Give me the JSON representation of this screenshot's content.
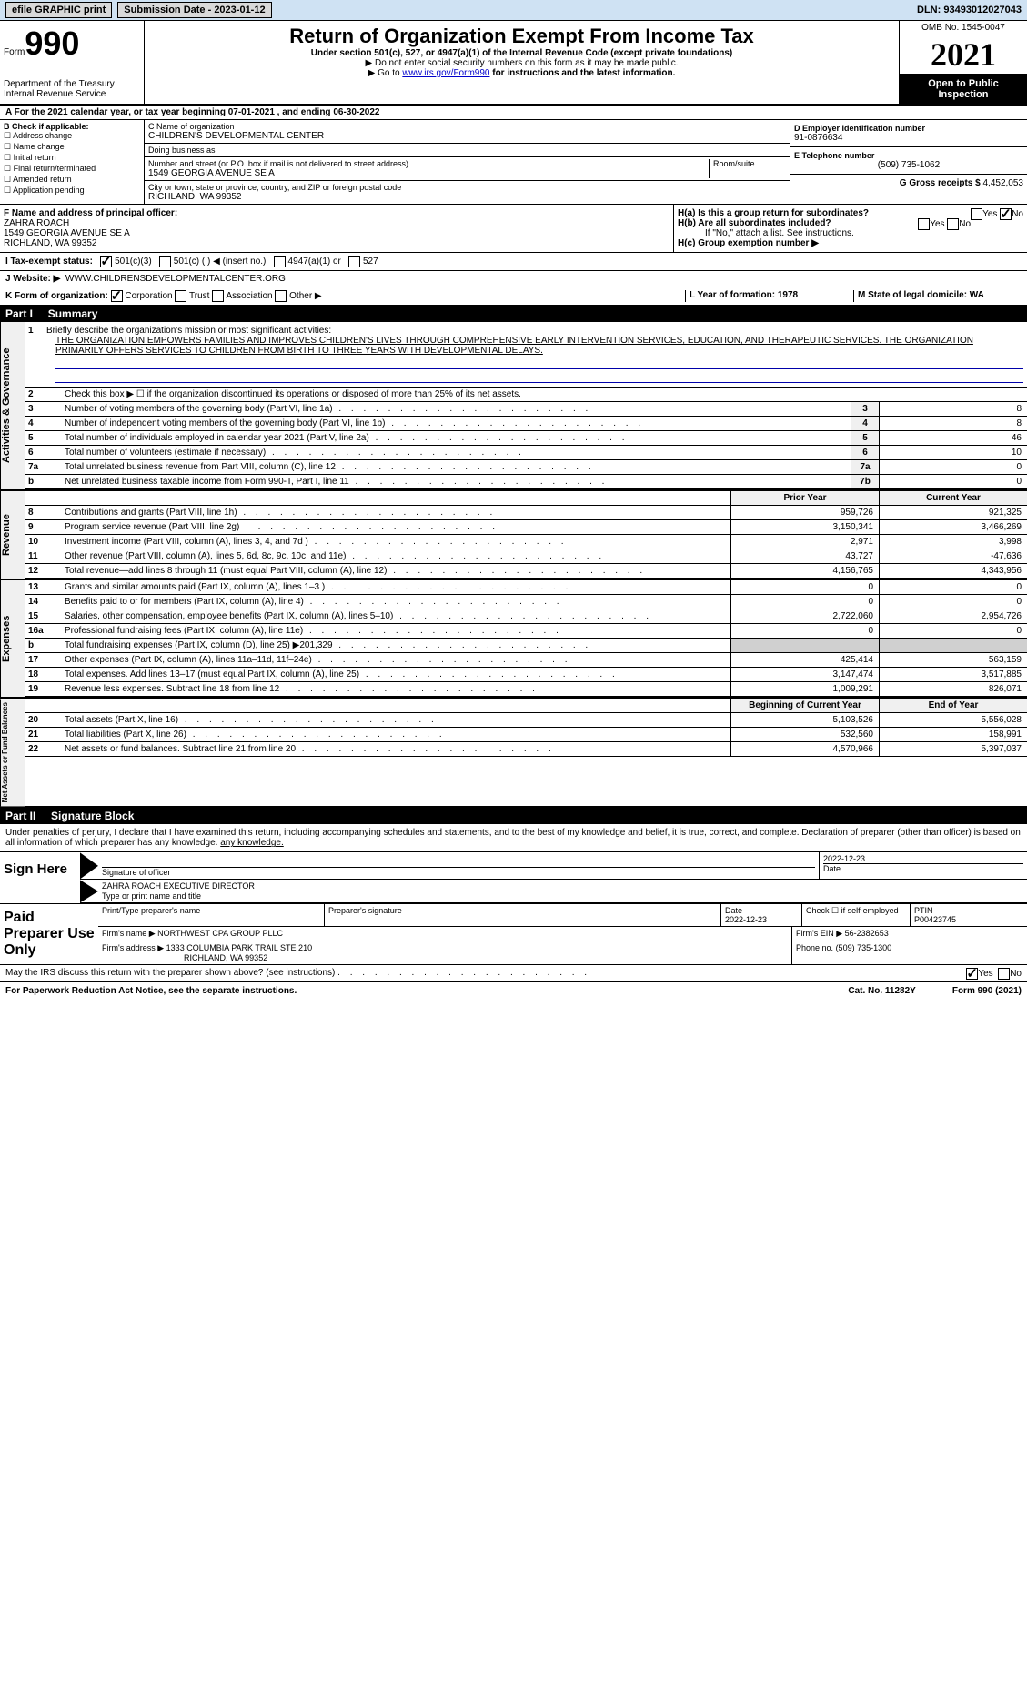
{
  "topbar": {
    "efile_label": "efile GRAPHIC print",
    "submission_label": "Submission Date - 2023-01-12",
    "dln_label": "DLN: 93493012027043"
  },
  "header": {
    "form_word": "Form",
    "form_number": "990",
    "main_title": "Return of Organization Exempt From Income Tax",
    "subtitle": "Under section 501(c), 527, or 4947(a)(1) of the Internal Revenue Code (except private foundations)",
    "ssn_note": "▶ Do not enter social security numbers on this form as it may be made public.",
    "goto": "▶ Go to ",
    "goto_link": "www.irs.gov/Form990",
    "goto_suffix": " for instructions and the latest information.",
    "dept": "Department of the Treasury",
    "irs": "Internal Revenue Service",
    "omb": "OMB No. 1545-0047",
    "year": "2021",
    "open_public": "Open to Public Inspection"
  },
  "period": {
    "line": "A For the 2021 calendar year, or tax year beginning 07-01-2021    , and ending 06-30-2022"
  },
  "colB": {
    "label": "B Check if applicable:",
    "items": [
      "Address change",
      "Name change",
      "Initial return",
      "Final return/terminated",
      "Amended return",
      "Application pending"
    ]
  },
  "colC": {
    "name_label": "C Name of organization",
    "name": "CHILDREN'S DEVELOPMENTAL CENTER",
    "dba_label": "Doing business as",
    "dba": "",
    "street_label": "Number and street (or P.O. box if mail is not delivered to street address)",
    "room_label": "Room/suite",
    "street": "1549 GEORGIA AVENUE SE A",
    "city_label": "City or town, state or province, country, and ZIP or foreign postal code",
    "city": "RICHLAND, WA  99352"
  },
  "colDEG": {
    "d_label": "D Employer identification number",
    "d_val": "91-0876634",
    "e_label": "E Telephone number",
    "e_val": "(509) 735-1062",
    "g_label": "G Gross receipts $ ",
    "g_val": "4,452,053"
  },
  "rowF": {
    "label": "F  Name and address of principal officer:",
    "name": "ZAHRA ROACH",
    "street": "1549 GEORGIA AVENUE SE A",
    "city": "RICHLAND, WA  99352"
  },
  "rowH": {
    "ha": "H(a)  Is this a group return for subordinates?",
    "yes": "Yes",
    "no": "No",
    "hb": "H(b)  Are all subordinates included?",
    "hb_note": "If \"No,\" attach a list. See instructions.",
    "hc": "H(c)  Group exemption number ▶"
  },
  "rowI": {
    "label": "I   Tax-exempt status:",
    "c3": "501(c)(3)",
    "c": "501(c) (  ) ◀ (insert no.)",
    "a1": "4947(a)(1) or",
    "c527": "527"
  },
  "rowJ": {
    "label": "J   Website: ▶",
    "val": "WWW.CHILDRENSDEVELOPMENTALCENTER.ORG"
  },
  "rowK": {
    "label": "K Form of organization:",
    "corp": "Corporation",
    "trust": "Trust",
    "assoc": "Association",
    "other": "Other ▶"
  },
  "rowL": {
    "l": "L Year of formation: 1978",
    "m": "M State of legal domicile: WA"
  },
  "part1": {
    "header": "Part I",
    "title": "Summary"
  },
  "mission": {
    "num": "1",
    "intro": "Briefly describe the organization's mission or most significant activities:",
    "text": "THE ORGANIZATION EMPOWERS FAMILIES AND IMPROVES CHILDREN'S LIVES THROUGH COMPREHENSIVE EARLY INTERVENTION SERVICES, EDUCATION, AND THERAPEUTIC SERVICES. THE ORGANIZATION PRIMARILY OFFERS SERVICES TO CHILDREN FROM BIRTH TO THREE YEARS WITH DEVELOPMENTAL DELAYS."
  },
  "governance": {
    "line2": "Check this box ▶ ☐  if the organization discontinued its operations or disposed of more than 25% of its net assets.",
    "rows": [
      {
        "n": "3",
        "t": "Number of voting members of the governing body (Part VI, line 1a)",
        "b": "3",
        "v": "8"
      },
      {
        "n": "4",
        "t": "Number of independent voting members of the governing body (Part VI, line 1b)",
        "b": "4",
        "v": "8"
      },
      {
        "n": "5",
        "t": "Total number of individuals employed in calendar year 2021 (Part V, line 2a)",
        "b": "5",
        "v": "46"
      },
      {
        "n": "6",
        "t": "Total number of volunteers (estimate if necessary)",
        "b": "6",
        "v": "10"
      },
      {
        "n": "7a",
        "t": "Total unrelated business revenue from Part VIII, column (C), line 12",
        "b": "7a",
        "v": "0"
      },
      {
        "n": "b",
        "t": "Net unrelated business taxable income from Form 990-T, Part I, line 11",
        "b": "7b",
        "v": "0"
      }
    ]
  },
  "revenue": {
    "hdr_prior": "Prior Year",
    "hdr_curr": "Current Year",
    "rows": [
      {
        "n": "8",
        "t": "Contributions and grants (Part VIII, line 1h)",
        "p": "959,726",
        "c": "921,325"
      },
      {
        "n": "9",
        "t": "Program service revenue (Part VIII, line 2g)",
        "p": "3,150,341",
        "c": "3,466,269"
      },
      {
        "n": "10",
        "t": "Investment income (Part VIII, column (A), lines 3, 4, and 7d )",
        "p": "2,971",
        "c": "3,998"
      },
      {
        "n": "11",
        "t": "Other revenue (Part VIII, column (A), lines 5, 6d, 8c, 9c, 10c, and 11e)",
        "p": "43,727",
        "c": "-47,636"
      },
      {
        "n": "12",
        "t": "Total revenue—add lines 8 through 11 (must equal Part VIII, column (A), line 12)",
        "p": "4,156,765",
        "c": "4,343,956"
      }
    ]
  },
  "expenses": {
    "rows": [
      {
        "n": "13",
        "t": "Grants and similar amounts paid (Part IX, column (A), lines 1–3 )",
        "p": "0",
        "c": "0"
      },
      {
        "n": "14",
        "t": "Benefits paid to or for members (Part IX, column (A), line 4)",
        "p": "0",
        "c": "0"
      },
      {
        "n": "15",
        "t": "Salaries, other compensation, employee benefits (Part IX, column (A), lines 5–10)",
        "p": "2,722,060",
        "c": "2,954,726"
      },
      {
        "n": "16a",
        "t": "Professional fundraising fees (Part IX, column (A), line 11e)",
        "p": "0",
        "c": "0"
      },
      {
        "n": "b",
        "t": "Total fundraising expenses (Part IX, column (D), line 25) ▶201,329",
        "p": "",
        "c": "",
        "shade": true
      },
      {
        "n": "17",
        "t": "Other expenses (Part IX, column (A), lines 11a–11d, 11f–24e)",
        "p": "425,414",
        "c": "563,159"
      },
      {
        "n": "18",
        "t": "Total expenses. Add lines 13–17 (must equal Part IX, column (A), line 25)",
        "p": "3,147,474",
        "c": "3,517,885"
      },
      {
        "n": "19",
        "t": "Revenue less expenses. Subtract line 18 from line 12",
        "p": "1,009,291",
        "c": "826,071"
      }
    ]
  },
  "netassets": {
    "hdr_beg": "Beginning of Current Year",
    "hdr_end": "End of Year",
    "rows": [
      {
        "n": "20",
        "t": "Total assets (Part X, line 16)",
        "p": "5,103,526",
        "c": "5,556,028"
      },
      {
        "n": "21",
        "t": "Total liabilities (Part X, line 26)",
        "p": "532,560",
        "c": "158,991"
      },
      {
        "n": "22",
        "t": "Net assets or fund balances. Subtract line 21 from line 20",
        "p": "4,570,966",
        "c": "5,397,037"
      }
    ]
  },
  "side_labels": {
    "gov": "Activities & Governance",
    "rev": "Revenue",
    "exp": "Expenses",
    "net": "Net Assets or Fund Balances"
  },
  "part2": {
    "header": "Part II",
    "title": "Signature Block"
  },
  "penalties": "Under penalties of perjury, I declare that I have examined this return, including accompanying schedules and statements, and to the best of my knowledge and belief, it is true, correct, and complete. Declaration of preparer (other than officer) is based on all information of which preparer has any knowledge.",
  "sign": {
    "left": "Sign Here",
    "sig_officer_lbl": "Signature of officer",
    "date": "2022-12-23",
    "date_lbl": "Date",
    "name": "ZAHRA ROACH  EXECUTIVE DIRECTOR",
    "name_lbl": "Type or print name and title"
  },
  "preparer": {
    "left": "Paid Preparer Use Only",
    "print_lbl": "Print/Type preparer's name",
    "sig_lbl": "Preparer's signature",
    "date_lbl": "Date",
    "date": "2022-12-23",
    "check_lbl": "Check ☐ if self-employed",
    "ptin_lbl": "PTIN",
    "ptin": "P00423745",
    "firm_name_lbl": "Firm's name    ▶",
    "firm_name": "NORTHWEST CPA GROUP PLLC",
    "firm_ein_lbl": "Firm's EIN ▶",
    "firm_ein": "56-2382653",
    "firm_addr_lbl": "Firm's address ▶",
    "firm_addr1": "1333 COLUMBIA PARK TRAIL STE 210",
    "firm_addr2": "RICHLAND, WA  99352",
    "phone_lbl": "Phone no.",
    "phone": "(509) 735-1300"
  },
  "discuss": {
    "txt": "May the IRS discuss this return with the preparer shown above? (see instructions)",
    "yes": "Yes",
    "no": "No"
  },
  "footer": {
    "left": "For Paperwork Reduction Act Notice, see the separate instructions.",
    "cat": "Cat. No. 11282Y",
    "right": "Form 990 (2021)"
  }
}
